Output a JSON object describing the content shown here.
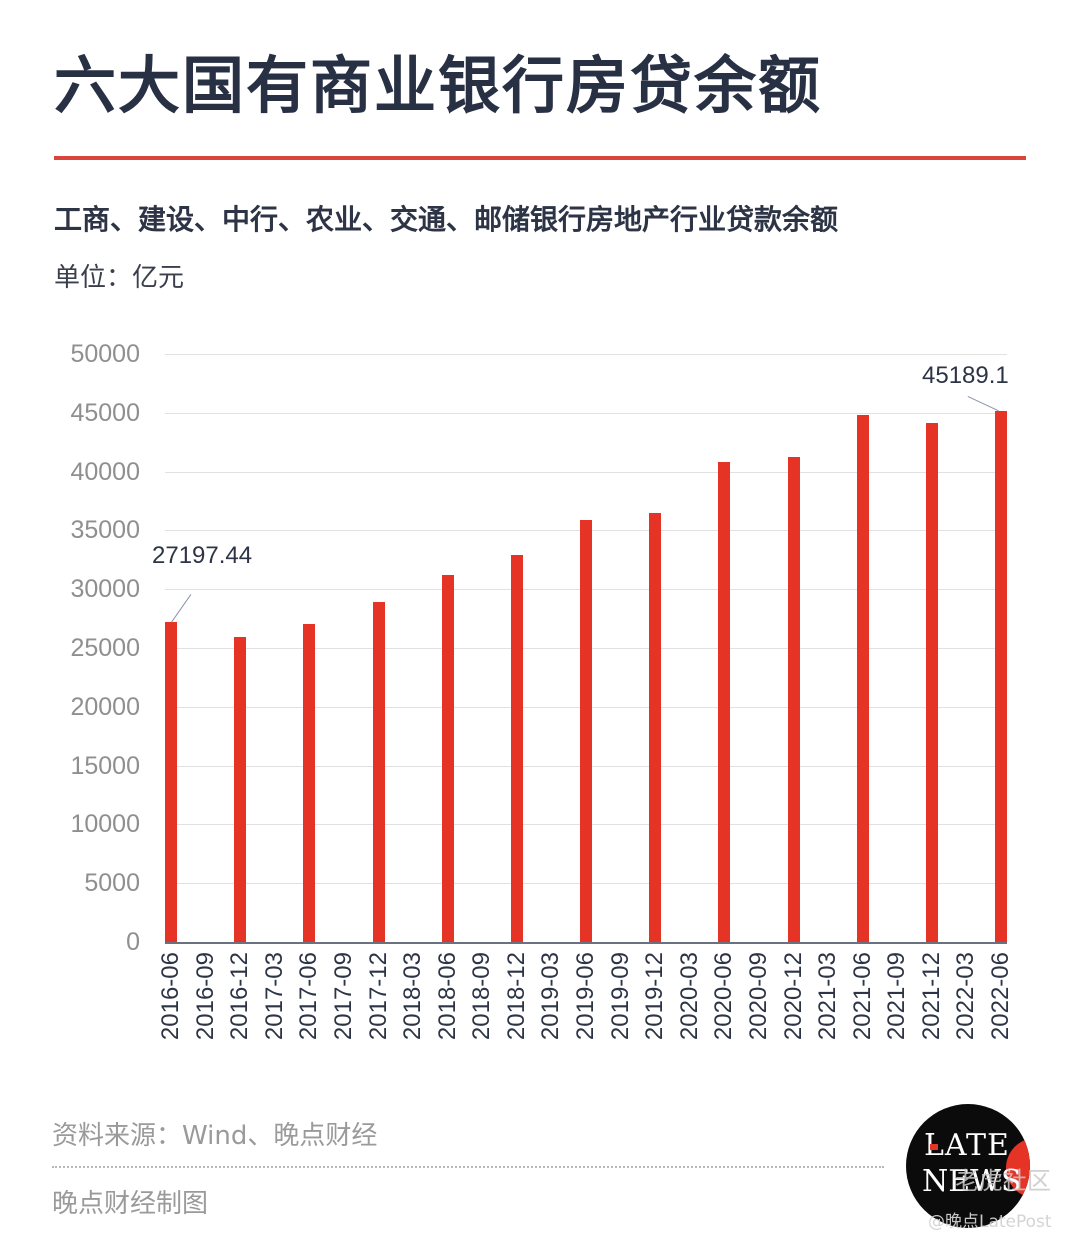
{
  "header": {
    "title": "六大国有商业银行房贷余额",
    "subtitle": "工商、建设、中行、农业、交通、邮储银行房地产行业贷款余额",
    "unit": "单位：亿元"
  },
  "colors": {
    "title": "#283044",
    "accent_rule": "#d9453a",
    "bar": "#e53326",
    "grid": "#e1e1e1",
    "axis_tick_text": "#8f8f8f"
  },
  "chart_data": {
    "type": "bar",
    "title": "六大国有商业银行房贷余额",
    "subtitle": "工商、建设、中行、农业、交通、邮储银行房地产行业贷款余额",
    "xlabel": "",
    "ylabel": "单位：亿元",
    "ylim": [
      0,
      50000
    ],
    "yticks": [
      0,
      5000,
      10000,
      15000,
      20000,
      25000,
      30000,
      35000,
      40000,
      45000,
      50000
    ],
    "grid": true,
    "legend": null,
    "categories": [
      "2016-06",
      "2016-09",
      "2016-12",
      "2017-03",
      "2017-06",
      "2017-09",
      "2017-12",
      "2018-03",
      "2018-06",
      "2018-09",
      "2018-12",
      "2019-03",
      "2019-06",
      "2019-09",
      "2019-12",
      "2020-03",
      "2020-06",
      "2020-09",
      "2020-12",
      "2021-03",
      "2021-06",
      "2021-09",
      "2021-12",
      "2022-03",
      "2022-06"
    ],
    "values": [
      27197.44,
      null,
      25900,
      null,
      27000,
      null,
      28900,
      null,
      31200,
      null,
      32900,
      null,
      35900,
      null,
      36500,
      null,
      40800,
      null,
      41200,
      null,
      44800,
      null,
      44100,
      null,
      45189.1
    ],
    "annotations": [
      {
        "category": "2016-06",
        "text": "27197.44"
      },
      {
        "category": "2022-06",
        "text": "45189.1"
      }
    ]
  },
  "footer": {
    "source": "资料来源：Wind、晚点财经",
    "maker": "晚点财经制图"
  },
  "logo": {
    "line1": "LATE",
    "line2": "NEWS"
  },
  "watermark": {
    "overlay": "老虎社区",
    "handle": "@晚点LatePost"
  }
}
